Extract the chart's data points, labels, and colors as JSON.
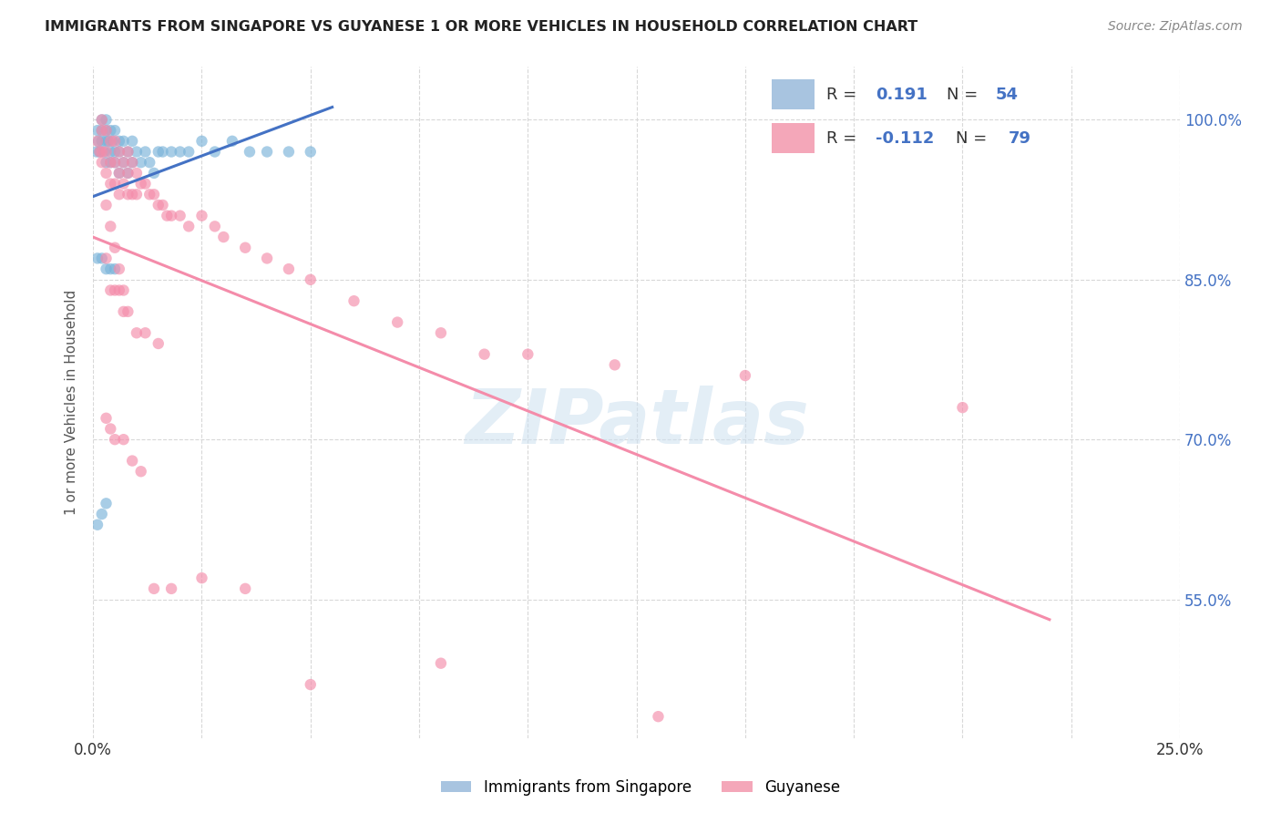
{
  "title": "IMMIGRANTS FROM SINGAPORE VS GUYANESE 1 OR MORE VEHICLES IN HOUSEHOLD CORRELATION CHART",
  "source": "Source: ZipAtlas.com",
  "ylabel": "1 or more Vehicles in Household",
  "watermark": "ZIPatlas",
  "singapore_color": "#7ab3d9",
  "guyanese_color": "#f48caa",
  "singapore_line_color": "#4472c4",
  "guyanese_line_color": "#f48caa",
  "legend_sg_color": "#a8c4e0",
  "legend_gy_color": "#f4a7b9",
  "xlim": [
    0.0,
    0.25
  ],
  "ylim": [
    0.42,
    1.05
  ],
  "ytick_positions": [
    0.55,
    0.7,
    0.85,
    1.0
  ],
  "ytick_labels": [
    "55.0%",
    "70.0%",
    "85.0%",
    "100.0%"
  ],
  "singapore_R": 0.191,
  "singapore_N": 54,
  "guyanese_R": -0.112,
  "guyanese_N": 79,
  "sg_x": [
    0.0008,
    0.001,
    0.0012,
    0.0015,
    0.002,
    0.002,
    0.002,
    0.0025,
    0.003,
    0.003,
    0.003,
    0.003,
    0.0035,
    0.004,
    0.004,
    0.004,
    0.0045,
    0.005,
    0.005,
    0.005,
    0.006,
    0.006,
    0.006,
    0.007,
    0.007,
    0.008,
    0.008,
    0.009,
    0.009,
    0.01,
    0.011,
    0.012,
    0.013,
    0.014,
    0.015,
    0.016,
    0.018,
    0.02,
    0.022,
    0.025,
    0.028,
    0.032,
    0.036,
    0.04,
    0.045,
    0.05,
    0.001,
    0.002,
    0.003,
    0.004,
    0.005,
    0.001,
    0.002,
    0.003
  ],
  "sg_y": [
    0.97,
    0.99,
    0.98,
    0.97,
    1.0,
    0.99,
    0.98,
    0.97,
    1.0,
    0.99,
    0.98,
    0.96,
    0.98,
    0.99,
    0.97,
    0.96,
    0.98,
    0.99,
    0.97,
    0.96,
    0.98,
    0.97,
    0.95,
    0.98,
    0.96,
    0.97,
    0.95,
    0.98,
    0.96,
    0.97,
    0.96,
    0.97,
    0.96,
    0.95,
    0.97,
    0.97,
    0.97,
    0.97,
    0.97,
    0.98,
    0.97,
    0.98,
    0.97,
    0.97,
    0.97,
    0.97,
    0.87,
    0.87,
    0.86,
    0.86,
    0.86,
    0.62,
    0.63,
    0.64
  ],
  "gy_x": [
    0.001,
    0.0015,
    0.002,
    0.002,
    0.002,
    0.003,
    0.003,
    0.003,
    0.004,
    0.004,
    0.004,
    0.005,
    0.005,
    0.005,
    0.006,
    0.006,
    0.006,
    0.007,
    0.007,
    0.008,
    0.008,
    0.008,
    0.009,
    0.009,
    0.01,
    0.01,
    0.011,
    0.012,
    0.013,
    0.014,
    0.015,
    0.016,
    0.017,
    0.018,
    0.02,
    0.022,
    0.025,
    0.028,
    0.03,
    0.035,
    0.04,
    0.045,
    0.05,
    0.06,
    0.07,
    0.08,
    0.09,
    0.1,
    0.12,
    0.15,
    0.2,
    0.003,
    0.004,
    0.005,
    0.006,
    0.007,
    0.008,
    0.01,
    0.012,
    0.015,
    0.002,
    0.003,
    0.004,
    0.005,
    0.006,
    0.007,
    0.003,
    0.004,
    0.005,
    0.007,
    0.009,
    0.011,
    0.014,
    0.018,
    0.025,
    0.035,
    0.05,
    0.08,
    0.13
  ],
  "gy_y": [
    0.98,
    0.97,
    0.99,
    0.97,
    0.96,
    0.99,
    0.97,
    0.95,
    0.98,
    0.96,
    0.94,
    0.98,
    0.96,
    0.94,
    0.97,
    0.95,
    0.93,
    0.96,
    0.94,
    0.97,
    0.95,
    0.93,
    0.96,
    0.93,
    0.95,
    0.93,
    0.94,
    0.94,
    0.93,
    0.93,
    0.92,
    0.92,
    0.91,
    0.91,
    0.91,
    0.9,
    0.91,
    0.9,
    0.89,
    0.88,
    0.87,
    0.86,
    0.85,
    0.83,
    0.81,
    0.8,
    0.78,
    0.78,
    0.77,
    0.76,
    0.73,
    0.87,
    0.84,
    0.84,
    0.84,
    0.82,
    0.82,
    0.8,
    0.8,
    0.79,
    1.0,
    0.92,
    0.9,
    0.88,
    0.86,
    0.84,
    0.72,
    0.71,
    0.7,
    0.7,
    0.68,
    0.67,
    0.56,
    0.56,
    0.57,
    0.56,
    0.47,
    0.49,
    0.44
  ]
}
